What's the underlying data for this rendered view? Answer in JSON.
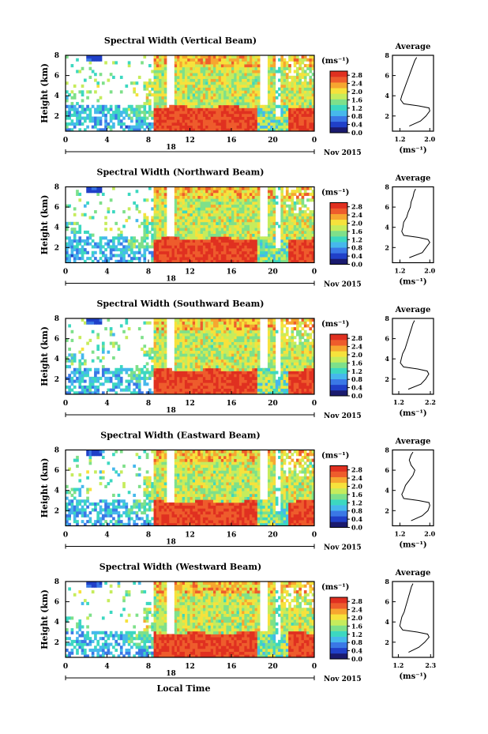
{
  "chart_data": {
    "type": "heatmap",
    "xaxis": {
      "ticks": [
        "0",
        "4",
        "8",
        "12",
        "16",
        "20",
        "0"
      ],
      "range": [
        0,
        24
      ],
      "day_label": "18",
      "date_label": "Nov 2015",
      "xlabel": "Local Time"
    },
    "yaxis": {
      "ticks": [
        "2",
        "4",
        "6",
        "8"
      ],
      "range": [
        0.5,
        8
      ],
      "ylabel": "Height (km)"
    },
    "colorbar": {
      "unit": "(ms⁻¹)",
      "ticks": [
        "0.0",
        "0.4",
        "0.8",
        "1.2",
        "1.6",
        "2.0",
        "2.4",
        "2.8"
      ],
      "range": [
        0,
        3.0
      ],
      "colors": [
        "#1a1a6e",
        "#2040c8",
        "#3a78e6",
        "#46b8ec",
        "#3cd8c0",
        "#7ee08a",
        "#c6ec5c",
        "#f6e23c",
        "#f6a630",
        "#ee5c2c",
        "#e03020"
      ]
    },
    "panels": [
      {
        "title": "Spectral Width (Vertical Beam)",
        "avg_title": "Average",
        "avg_xticks": [
          "1.2",
          "2.0"
        ],
        "avg_xlim": [
          1.0,
          2.1
        ],
        "avg_xlabel": "(ms⁻¹)",
        "avg_profile": {
          "height_km": [
            1.0,
            1.5,
            2.0,
            2.5,
            2.8,
            3.0,
            3.2,
            3.6,
            4.0,
            4.5,
            5.0,
            5.5,
            6.0,
            6.5,
            7.0,
            7.5,
            7.8
          ],
          "width": [
            1.45,
            1.75,
            1.9,
            2.0,
            1.98,
            1.7,
            1.3,
            1.22,
            1.25,
            1.3,
            1.35,
            1.4,
            1.45,
            1.5,
            1.55,
            1.6,
            1.65
          ]
        }
      },
      {
        "title": "Spectral Width (Northward Beam)",
        "avg_title": "Average",
        "avg_xticks": [
          "1.2",
          "2.0"
        ],
        "avg_xlim": [
          1.0,
          2.1
        ],
        "avg_xlabel": "(ms⁻¹)",
        "avg_profile": {
          "height_km": [
            1.0,
            1.5,
            2.0,
            2.5,
            2.8,
            3.0,
            3.2,
            3.6,
            4.0,
            4.5,
            5.0,
            5.5,
            6.0,
            6.5,
            7.0,
            7.5,
            7.8
          ],
          "width": [
            1.45,
            1.8,
            1.9,
            2.0,
            1.95,
            1.7,
            1.3,
            1.25,
            1.28,
            1.3,
            1.38,
            1.42,
            1.48,
            1.5,
            1.55,
            1.58,
            1.62
          ]
        }
      },
      {
        "title": "Spectral Width (Southward Beam)",
        "avg_title": "Average",
        "avg_xticks": [
          "1.2",
          "2.2"
        ],
        "avg_xlim": [
          1.0,
          2.3
        ],
        "avg_xlabel": "(ms⁻¹)",
        "avg_profile": {
          "height_km": [
            1.0,
            1.5,
            2.0,
            2.5,
            2.8,
            3.0,
            3.2,
            3.6,
            4.0,
            4.5,
            5.0,
            5.5,
            6.0,
            6.5,
            7.0,
            7.5,
            7.8
          ],
          "width": [
            1.5,
            1.9,
            2.05,
            2.15,
            2.1,
            1.8,
            1.35,
            1.25,
            1.28,
            1.32,
            1.4,
            1.45,
            1.5,
            1.55,
            1.6,
            1.65,
            1.7
          ]
        }
      },
      {
        "title": "Spectral Width (Eastward Beam)",
        "avg_title": "Average",
        "avg_xticks": [
          "1.2",
          "2.0"
        ],
        "avg_xlim": [
          1.0,
          2.1
        ],
        "avg_xlabel": "(ms⁻¹)",
        "avg_profile": {
          "height_km": [
            1.0,
            1.5,
            2.0,
            2.5,
            2.8,
            3.0,
            3.2,
            3.6,
            4.0,
            4.5,
            5.0,
            5.5,
            6.0,
            6.5,
            7.0,
            7.5,
            7.8
          ],
          "width": [
            1.5,
            1.8,
            1.95,
            2.0,
            1.98,
            1.7,
            1.3,
            1.25,
            1.3,
            1.35,
            1.45,
            1.55,
            1.6,
            1.5,
            1.45,
            1.5,
            1.55
          ]
        }
      },
      {
        "title": "Spectral Width (Westward Beam)",
        "avg_title": "Average",
        "avg_xticks": [
          "1.2",
          "2.3"
        ],
        "avg_xlim": [
          1.0,
          2.4
        ],
        "avg_xlabel": "(ms⁻¹)",
        "avg_profile": {
          "height_km": [
            1.0,
            1.5,
            2.0,
            2.5,
            2.8,
            3.0,
            3.2,
            3.6,
            4.0,
            4.5,
            5.0,
            5.5,
            6.0,
            6.5,
            7.0,
            7.5,
            7.8
          ],
          "width": [
            1.55,
            1.9,
            2.1,
            2.25,
            2.2,
            1.85,
            1.35,
            1.25,
            1.28,
            1.32,
            1.4,
            1.45,
            1.5,
            1.55,
            1.6,
            1.65,
            1.7
          ]
        }
      }
    ]
  }
}
